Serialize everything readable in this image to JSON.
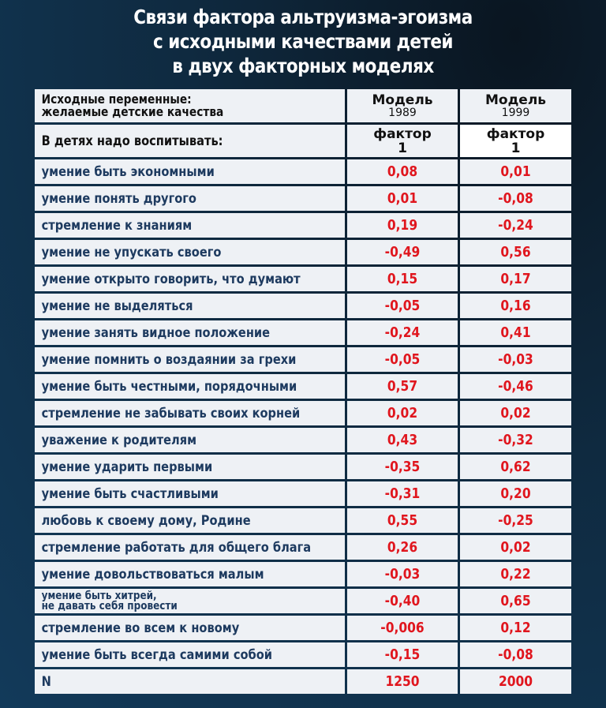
{
  "title": {
    "line1": "Связи фактора альтруизма-эгоизма",
    "line2": "с исходными качествами детей",
    "line3": "в двух факторных моделях"
  },
  "header": {
    "variables_line1": "Исходные переменные:",
    "variables_line2": "желаемые детские качества",
    "model1_label": "Модель",
    "model1_year": "1989",
    "model2_label": "Модель",
    "model2_year": "1999",
    "subheader_label": "В детях надо воспитывать:",
    "factor_label": "фактор",
    "factor_number": "1"
  },
  "rows": [
    {
      "label": "умение быть экономными",
      "m1989": "0,08",
      "m1999": "0,01"
    },
    {
      "label": "умение понять другого",
      "m1989": "0,01",
      "m1999": "-0,08"
    },
    {
      "label": "стремление к знаниям",
      "m1989": "0,19",
      "m1999": "-0,24"
    },
    {
      "label": "умение не упускать своего",
      "m1989": "-0,49",
      "m1999": "0,56"
    },
    {
      "label": "умение открыто говорить, что думают",
      "m1989": "0,15",
      "m1999": "0,17"
    },
    {
      "label": "умение не выделяться",
      "m1989": "-0,05",
      "m1999": "0,16"
    },
    {
      "label": "умение занять видное положение",
      "m1989": "-0,24",
      "m1999": "0,41"
    },
    {
      "label": "умение помнить о воздаянии за грехи",
      "m1989": "-0,05",
      "m1999": "-0,03"
    },
    {
      "label": "умение быть честными, порядочными",
      "m1989": "0,57",
      "m1999": "-0,46"
    },
    {
      "label": "стремление не забывать своих корней",
      "m1989": "0,02",
      "m1999": "0,02"
    },
    {
      "label": "уважение к родителям",
      "m1989": "0,43",
      "m1999": "-0,32"
    },
    {
      "label": "умение ударить первыми",
      "m1989": "-0,35",
      "m1999": "0,62"
    },
    {
      "label": "умение быть счастливыми",
      "m1989": "-0,31",
      "m1999": "0,20"
    },
    {
      "label": "любовь к своему дому, Родине",
      "m1989": "0,55",
      "m1999": "-0,25"
    },
    {
      "label": "стремление работать для общего блага",
      "m1989": "0,26",
      "m1999": "0,02"
    },
    {
      "label": "умение довольствоваться малым",
      "m1989": "-0,03",
      "m1999": "0,22"
    },
    {
      "label_line1": "умение быть хитрей,",
      "label_line2": "не давать себя провести",
      "m1989": "-0,40",
      "m1999": "0,65"
    },
    {
      "label": "стремление во всем к новому",
      "m1989": "-0,006",
      "m1999": "0,12"
    },
    {
      "label": "умение быть всегда самими собой",
      "m1989": "-0,15",
      "m1999": "-0,08"
    }
  ],
  "n_row": {
    "label": "N",
    "m1989": "1250",
    "m1999": "2000"
  },
  "colors": {
    "value_red": "#e0161e",
    "label_blue": "#1d3a5f",
    "cell_bg": "#eef1f5",
    "background": "#0f2e48"
  }
}
